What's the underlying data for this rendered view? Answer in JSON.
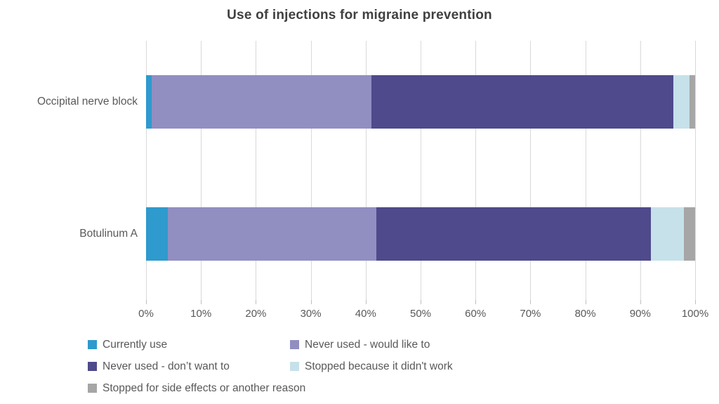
{
  "title": "Use of injections for migraine prevention",
  "chart_data": {
    "type": "bar",
    "orientation": "horizontal",
    "stacked": true,
    "title": "Use of injections for migraine prevention",
    "categories": [
      "Occipital nerve block",
      "Botulinum A"
    ],
    "series": [
      {
        "name": "Currently use",
        "color": "#2E9ACD",
        "values": [
          1,
          4
        ]
      },
      {
        "name": "Never used - would like to",
        "color": "#918EC2",
        "values": [
          40,
          38
        ]
      },
      {
        "name": "Never used - don’t want to",
        "color": "#4F4A8B",
        "values": [
          55,
          50
        ]
      },
      {
        "name": "Stopped because it didn't work",
        "color": "#C6E1EA",
        "values": [
          3,
          6
        ]
      },
      {
        "name": "Stopped for side effects or another reason",
        "color": "#A6A6A6",
        "values": [
          1,
          2
        ]
      }
    ],
    "x_axis": {
      "min": 0,
      "max": 100,
      "ticks": [
        "0%",
        "10%",
        "20%",
        "30%",
        "40%",
        "50%",
        "60%",
        "70%",
        "80%",
        "90%",
        "100%"
      ]
    },
    "grid": true,
    "legend_position": "bottom",
    "colors": {
      "gridline": "#d9d9d9",
      "tick": "#bfbfbf",
      "title_text": "#404040",
      "axis_text": "#595959"
    }
  }
}
